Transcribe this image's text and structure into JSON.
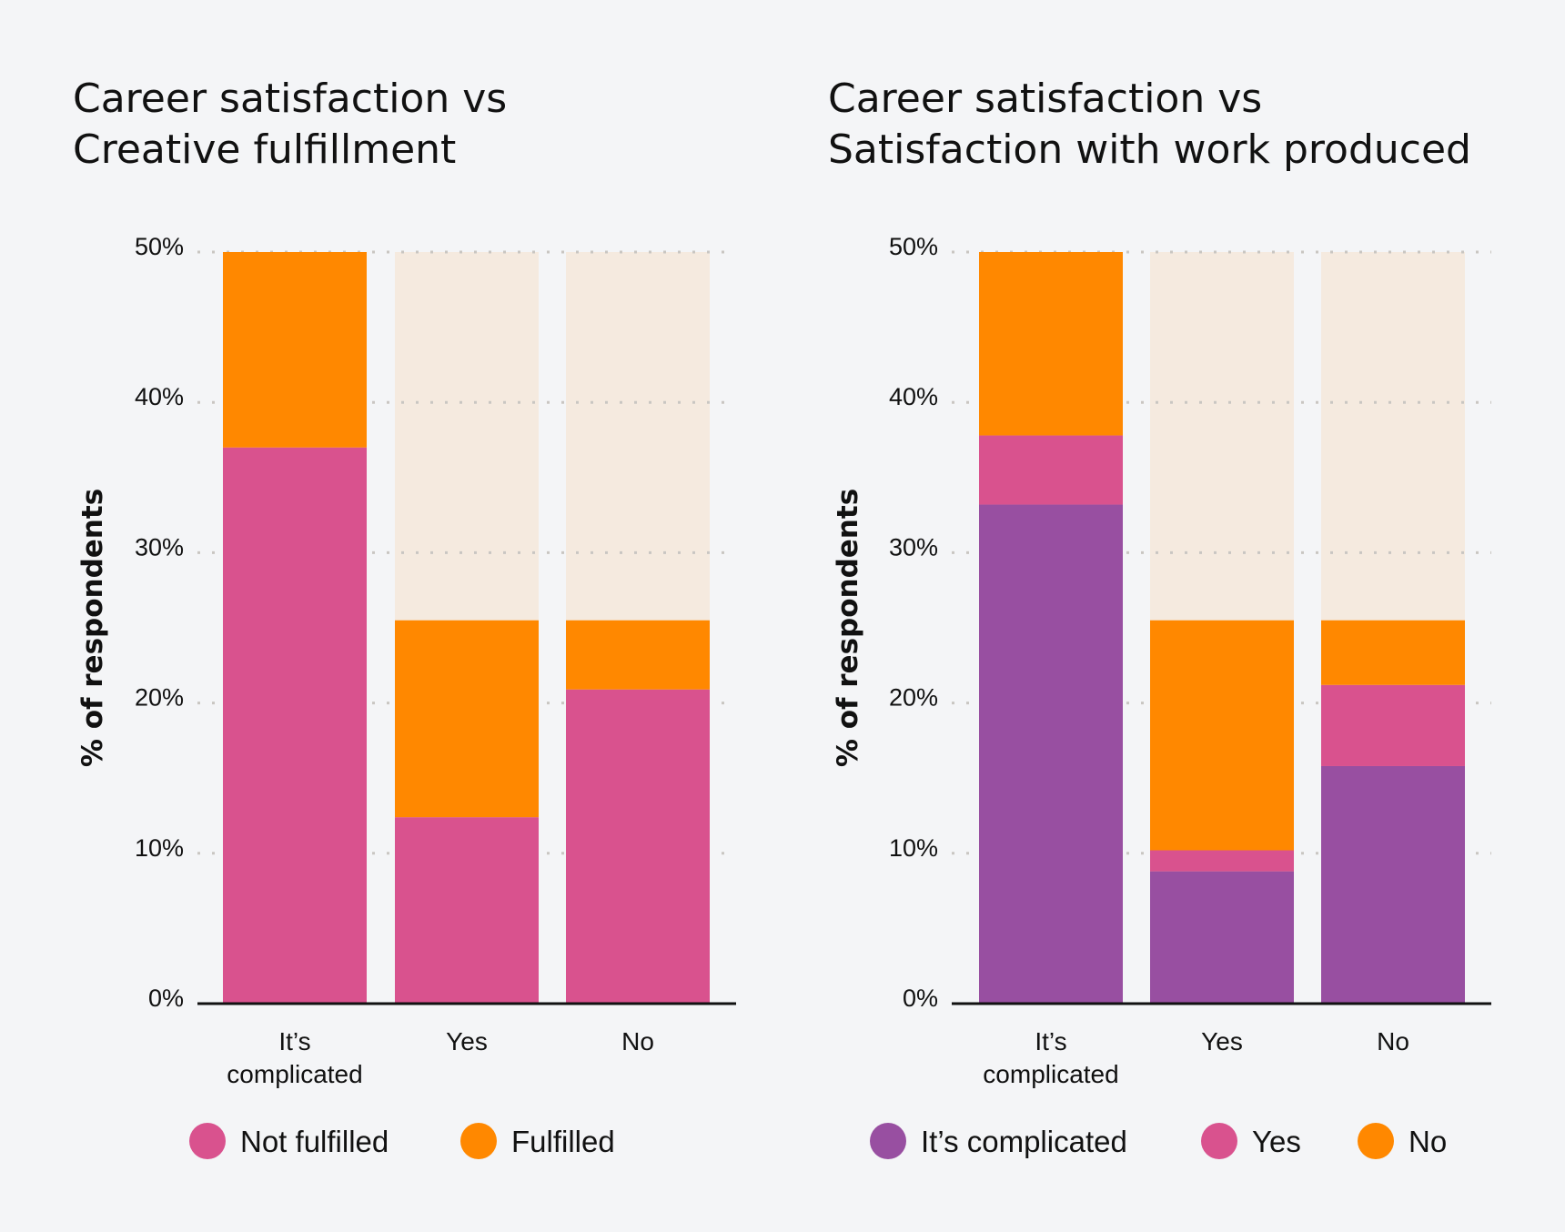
{
  "chart_data": [
    {
      "type": "bar",
      "stacked": true,
      "title": [
        "Career satisfaction vs",
        "Creative fulfillment"
      ],
      "ylabel": "% of respondents",
      "ylim": [
        0,
        50
      ],
      "yticks": [
        "0%",
        "10%",
        "20%",
        "30%",
        "40%",
        "50%"
      ],
      "grid": true,
      "categories": [
        [
          "It’s",
          "complicated"
        ],
        [
          "Yes"
        ],
        [
          "No"
        ]
      ],
      "background_band": {
        "to": 50,
        "color": "#f5eadf"
      },
      "legend_position": "bottom",
      "series": [
        {
          "name": "Not fulfilled",
          "color": "#d9528e",
          "values": [
            37.0,
            12.4,
            20.9
          ]
        },
        {
          "name": "Fulfilled",
          "color": "#ff8800",
          "values": [
            13.0,
            13.1,
            4.6
          ]
        }
      ]
    },
    {
      "type": "bar",
      "stacked": true,
      "title": [
        "Career satisfaction vs",
        "Satisfaction with work produced"
      ],
      "ylabel": "% of respondents",
      "ylim": [
        0,
        50
      ],
      "yticks": [
        "0%",
        "10%",
        "20%",
        "30%",
        "40%",
        "50%"
      ],
      "grid": true,
      "categories": [
        [
          "It’s",
          "complicated"
        ],
        [
          "Yes"
        ],
        [
          "No"
        ]
      ],
      "background_band": {
        "to": 50,
        "color": "#f5eadf"
      },
      "legend_position": "bottom",
      "series": [
        {
          "name": "It’s complicated",
          "color": "#984fa1",
          "values": [
            33.2,
            8.8,
            15.8
          ]
        },
        {
          "name": "Yes",
          "color": "#d9528e",
          "values": [
            4.6,
            1.4,
            5.4
          ]
        },
        {
          "name": "No",
          "color": "#ff8800",
          "values": [
            12.2,
            15.3,
            4.3
          ]
        }
      ]
    }
  ]
}
